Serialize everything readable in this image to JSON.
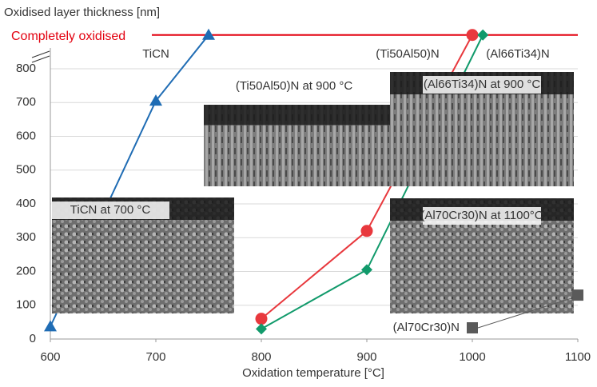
{
  "chart_data": {
    "type": "line",
    "y_axis_title": "Oxidised layer thickness [nm]",
    "x_axis_title": "Oxidation temperature [°C]",
    "xlim": [
      600,
      1100
    ],
    "xticks": [
      600,
      700,
      800,
      900,
      1000,
      1100
    ],
    "ylim": [
      0,
      900
    ],
    "yticks": [
      0,
      100,
      200,
      300,
      400,
      500,
      600,
      700,
      800
    ],
    "grid": true,
    "reference_line": {
      "label": "Completely oxidised",
      "value": 900,
      "color": "#e3000f"
    },
    "series": [
      {
        "name": "TiCN",
        "color": "#1f6cb4",
        "marker": "triangle",
        "x": [
          600,
          700,
          750
        ],
        "values": [
          37,
          705,
          900
        ]
      },
      {
        "name": "(Ti50Al50)N",
        "color": "#e8383d",
        "marker": "circle",
        "x": [
          800,
          900,
          1000
        ],
        "values": [
          60,
          320,
          900
        ]
      },
      {
        "name": "(Al66Ti34)N",
        "color": "#119a6b",
        "marker": "diamond",
        "x": [
          800,
          900,
          1010
        ],
        "values": [
          30,
          205,
          900
        ]
      },
      {
        "name": "(Al70Cr30)N",
        "color": "#5a5a5a",
        "marker": "square",
        "x": [
          1100
        ],
        "values": [
          130
        ]
      }
    ],
    "images": [
      {
        "caption": "TiCN at 700 °C"
      },
      {
        "caption": "(Ti50Al50)N at 900 °C"
      },
      {
        "caption": "(Al66Ti34)N at 900 °C"
      },
      {
        "caption": "(Al70Cr30)N at 1100°C"
      }
    ]
  }
}
